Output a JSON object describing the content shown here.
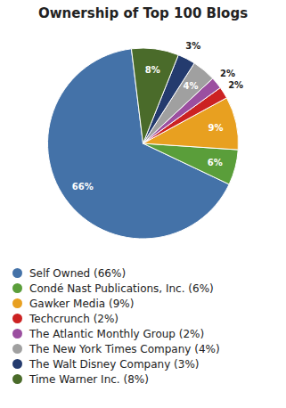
{
  "chart_data": {
    "type": "pie",
    "title": "Ownership of Top 100 Blogs",
    "categories": [
      "Self Owned (66%)",
      "Condé Nast Publications, Inc. (6%)",
      "Gawker Media (9%)",
      "Techcrunch (2%)",
      "The Atlantic Monthly Group (2%)",
      "The New York Times Company (4%)",
      "The Walt Disney Company (3%)",
      "Time Warner Inc. (8%)"
    ],
    "values": [
      66,
      6,
      9,
      2,
      2,
      4,
      3,
      8
    ],
    "value_labels": [
      "66%",
      "6%",
      "9%",
      "2%",
      "2%",
      "4%",
      "3%",
      "8%"
    ],
    "colors": [
      "#4472a8",
      "#5a9e3a",
      "#e8a020",
      "#cc2222",
      "#9b4fa0",
      "#a0a0a0",
      "#243b6e",
      "#4a6b2a"
    ],
    "data_labels": true,
    "legend": "bottom"
  }
}
